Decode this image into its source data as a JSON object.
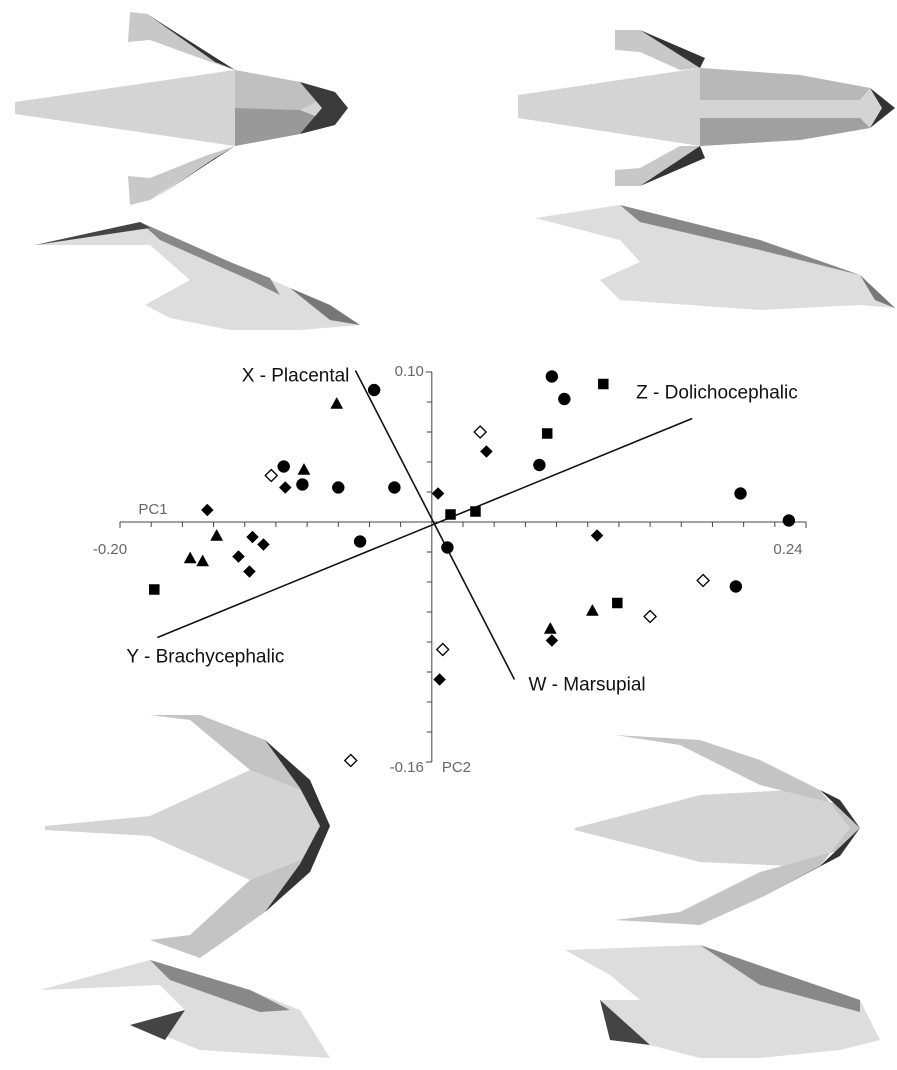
{
  "chart_data": {
    "type": "scatter",
    "x_label": "PC1",
    "y_label": "PC2",
    "xlim": [
      -0.2,
      0.24
    ],
    "ylim": [
      -0.16,
      0.1
    ],
    "xticks": [
      {
        "value": -0.2,
        "label": "-0.20"
      },
      {
        "value": 0.24,
        "label": "0.24"
      }
    ],
    "yticks": [
      {
        "value": 0.1,
        "label": "0.10"
      },
      {
        "value": -0.16,
        "label": "-0.16"
      }
    ],
    "minor_xticks": [
      -0.2,
      -0.18,
      -0.16,
      -0.14,
      -0.12,
      -0.1,
      -0.08,
      -0.06,
      -0.04,
      -0.02,
      0.02,
      0.04,
      0.06,
      0.08,
      0.1,
      0.12,
      0.14,
      0.16,
      0.18,
      0.2,
      0.22,
      0.24
    ],
    "minor_yticks": [
      -0.16,
      -0.14,
      -0.12,
      -0.1,
      -0.08,
      -0.06,
      -0.04,
      -0.02,
      0.02,
      0.04,
      0.06,
      0.08,
      0.1
    ],
    "vectors": [
      {
        "from_label": "X - Placental",
        "to_label": "W - Marsupial",
        "from": [
          -0.049,
          0.101
        ],
        "to": [
          0.053,
          -0.105
        ]
      },
      {
        "from_label": "Y - Brachycephalic",
        "to_label": "Z - Dolichocephalic",
        "from": [
          -0.176,
          -0.077
        ],
        "to": [
          0.167,
          0.069
        ]
      }
    ],
    "series": [
      {
        "marker": "circle",
        "color": "#000000",
        "filled": true,
        "x": [
          0.077,
          0.085,
          -0.037,
          -0.095,
          -0.083,
          -0.06,
          -0.024,
          0.069,
          0.198,
          0.229,
          -0.046,
          0.01,
          0.195
        ],
        "values": [
          0.097,
          0.082,
          0.088,
          0.037,
          0.025,
          0.023,
          0.023,
          0.038,
          0.019,
          0.001,
          -0.013,
          -0.017,
          -0.043
        ]
      },
      {
        "marker": "square",
        "color": "#000000",
        "filled": true,
        "x": [
          0.11,
          0.074,
          0.028,
          0.012,
          -0.178,
          0.119
        ],
        "values": [
          0.092,
          0.059,
          0.007,
          0.005,
          -0.045,
          -0.054
        ]
      },
      {
        "marker": "diamond",
        "color": "#000000",
        "filled": true,
        "x": [
          0.035,
          0.004,
          -0.094,
          -0.144,
          -0.108,
          -0.115,
          -0.124,
          -0.117,
          0.106,
          0.077,
          0.005
        ],
        "values": [
          0.047,
          0.019,
          0.023,
          0.008,
          -0.015,
          -0.01,
          -0.023,
          -0.033,
          -0.009,
          -0.079,
          -0.105
        ]
      },
      {
        "marker": "triangle",
        "color": "#000000",
        "filled": true,
        "x": [
          -0.061,
          -0.082,
          -0.138,
          -0.155,
          -0.147,
          0.076,
          0.103
        ],
        "values": [
          0.079,
          0.035,
          -0.009,
          -0.024,
          -0.026,
          -0.071,
          -0.059
        ]
      },
      {
        "marker": "diamond",
        "color": "#000000",
        "filled": false,
        "x": [
          0.031,
          -0.103,
          0.174,
          0.14,
          0.007,
          -0.052
        ],
        "values": [
          0.06,
          0.031,
          -0.039,
          -0.063,
          -0.085,
          -0.159
        ]
      }
    ]
  }
}
